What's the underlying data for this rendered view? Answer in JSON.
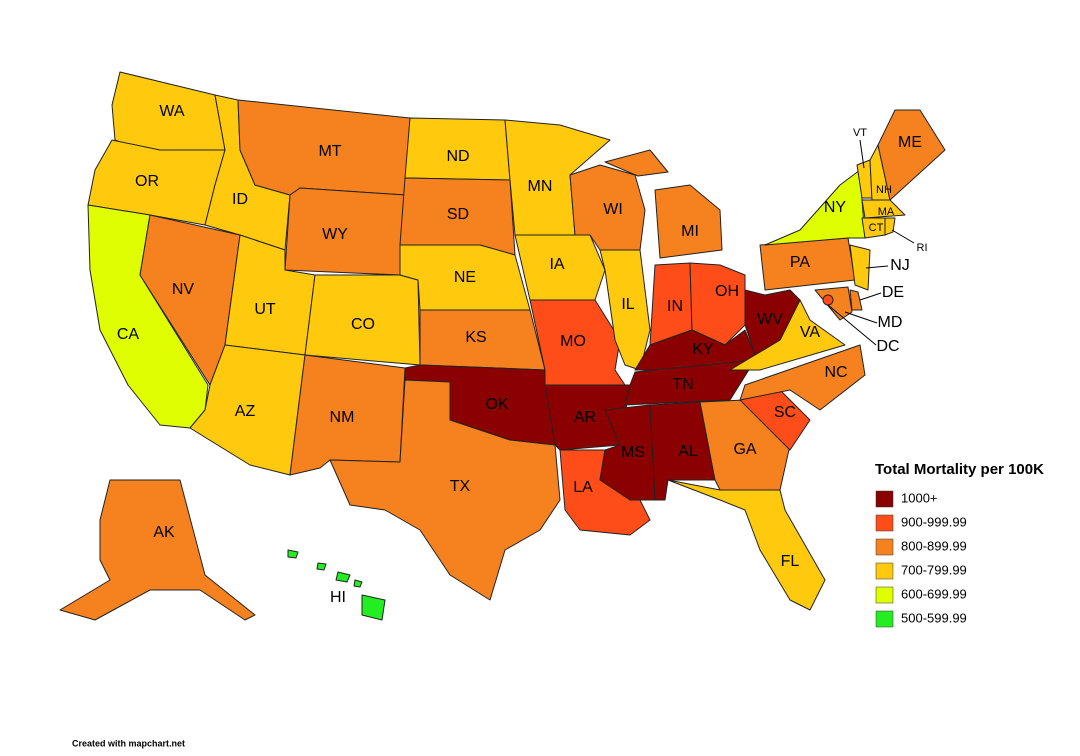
{
  "legend": {
    "title": "Total Mortality per 100K",
    "items": [
      {
        "label": "1000+",
        "color": "#8b0000"
      },
      {
        "label": "900-999.99",
        "color": "#ff4d1a"
      },
      {
        "label": "800-899.99",
        "color": "#f5821f"
      },
      {
        "label": "700-799.99",
        "color": "#ffc90e"
      },
      {
        "label": "600-699.99",
        "color": "#dfff00"
      },
      {
        "label": "500-599.99",
        "color": "#22ee22"
      }
    ]
  },
  "states": [
    {
      "label": "WA",
      "color": "#ffc90e"
    },
    {
      "label": "OR",
      "color": "#ffc90e"
    },
    {
      "label": "CA",
      "color": "#dfff00"
    },
    {
      "label": "NV",
      "color": "#f5821f"
    },
    {
      "label": "ID",
      "color": "#ffc90e"
    },
    {
      "label": "MT",
      "color": "#f5821f"
    },
    {
      "label": "WY",
      "color": "#f5821f"
    },
    {
      "label": "UT",
      "color": "#ffc90e"
    },
    {
      "label": "CO",
      "color": "#ffc90e"
    },
    {
      "label": "AZ",
      "color": "#ffc90e"
    },
    {
      "label": "NM",
      "color": "#f5821f"
    },
    {
      "label": "ND",
      "color": "#ffc90e"
    },
    {
      "label": "SD",
      "color": "#f5821f"
    },
    {
      "label": "NE",
      "color": "#ffc90e"
    },
    {
      "label": "KS",
      "color": "#f5821f"
    },
    {
      "label": "OK",
      "color": "#8b0000"
    },
    {
      "label": "TX",
      "color": "#f5821f"
    },
    {
      "label": "MN",
      "color": "#ffc90e"
    },
    {
      "label": "IA",
      "color": "#ffc90e"
    },
    {
      "label": "MO",
      "color": "#ff4d1a"
    },
    {
      "label": "AR",
      "color": "#8b0000"
    },
    {
      "label": "LA",
      "color": "#ff4d1a"
    },
    {
      "label": "WI",
      "color": "#f5821f"
    },
    {
      "label": "IL",
      "color": "#ffc90e"
    },
    {
      "label": "MI",
      "color": "#f5821f"
    },
    {
      "label": "IN",
      "color": "#ff4d1a"
    },
    {
      "label": "OH",
      "color": "#ff4d1a"
    },
    {
      "label": "KY",
      "color": "#8b0000"
    },
    {
      "label": "TN",
      "color": "#8b0000"
    },
    {
      "label": "MS",
      "color": "#8b0000"
    },
    {
      "label": "AL",
      "color": "#8b0000"
    },
    {
      "label": "GA",
      "color": "#f5821f"
    },
    {
      "label": "FL",
      "color": "#ffc90e"
    },
    {
      "label": "SC",
      "color": "#ff4d1a"
    },
    {
      "label": "NC",
      "color": "#f5821f"
    },
    {
      "label": "VA",
      "color": "#ffc90e"
    },
    {
      "label": "WV",
      "color": "#8b0000"
    },
    {
      "label": "PA",
      "color": "#f5821f"
    },
    {
      "label": "NY",
      "color": "#dfff00"
    },
    {
      "label": "VT",
      "color": "#ffc90e"
    },
    {
      "label": "NH",
      "color": "#ffc90e"
    },
    {
      "label": "ME",
      "color": "#f5821f"
    },
    {
      "label": "MA",
      "color": "#ffc90e"
    },
    {
      "label": "CT",
      "color": "#ffc90e"
    },
    {
      "label": "RI",
      "color": "#ffc90e"
    },
    {
      "label": "NJ",
      "color": "#ffc90e"
    },
    {
      "label": "DE",
      "color": "#f5821f"
    },
    {
      "label": "MD",
      "color": "#f5821f"
    },
    {
      "label": "DC",
      "color": "#ff4d1a"
    },
    {
      "label": "AK",
      "color": "#f5821f"
    },
    {
      "label": "HI",
      "color": "#22ee22"
    }
  ],
  "credit": "Created with mapchart.net"
}
